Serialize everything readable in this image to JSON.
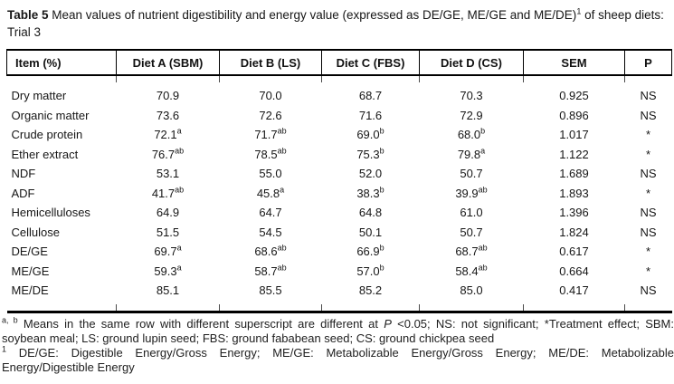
{
  "title": {
    "bold": "Table 5",
    "text": " Mean values of nutrient digestibility and energy value (expressed as DE/GE, ME/GE and ME/DE)",
    "sup": "1",
    "tail": " of sheep diets: Trial 3"
  },
  "table": {
    "columns": [
      "Item (%)",
      "Diet A (SBM)",
      "Diet B (LS)",
      "Diet C (FBS)",
      "Diet D (CS)",
      "SEM",
      "P"
    ],
    "rows": [
      {
        "item": "Dry matter",
        "cells": [
          {
            "v": "70.9"
          },
          {
            "v": "70.0"
          },
          {
            "v": "68.7"
          },
          {
            "v": "70.3"
          },
          {
            "v": "0.925"
          },
          {
            "v": "NS"
          }
        ]
      },
      {
        "item": "Organic matter",
        "cells": [
          {
            "v": "73.6"
          },
          {
            "v": "72.6"
          },
          {
            "v": "71.6"
          },
          {
            "v": "72.9"
          },
          {
            "v": "0.896"
          },
          {
            "v": "NS"
          }
        ]
      },
      {
        "item": "Crude protein",
        "cells": [
          {
            "v": "72.1",
            "sup": "a"
          },
          {
            "v": "71.7",
            "sup": "ab"
          },
          {
            "v": "69.0",
            "sup": "b"
          },
          {
            "v": "68.0",
            "sup": "b"
          },
          {
            "v": "1.017"
          },
          {
            "v": "*"
          }
        ]
      },
      {
        "item": "Ether extract",
        "cells": [
          {
            "v": "76.7",
            "sup": "ab"
          },
          {
            "v": "78.5",
            "sup": "ab"
          },
          {
            "v": "75.3",
            "sup": "b"
          },
          {
            "v": "79.8",
            "sup": "a"
          },
          {
            "v": "1.122"
          },
          {
            "v": "*"
          }
        ]
      },
      {
        "item": "NDF",
        "cells": [
          {
            "v": "53.1"
          },
          {
            "v": "55.0"
          },
          {
            "v": "52.0"
          },
          {
            "v": "50.7"
          },
          {
            "v": "1.689"
          },
          {
            "v": "NS"
          }
        ]
      },
      {
        "item": "ADF",
        "cells": [
          {
            "v": "41.7",
            "sup": "ab"
          },
          {
            "v": "45.8",
            "sup": "a"
          },
          {
            "v": "38.3",
            "sup": "b"
          },
          {
            "v": "39.9",
            "sup": "ab"
          },
          {
            "v": "1.893"
          },
          {
            "v": "*"
          }
        ]
      },
      {
        "item": "Hemicelluloses",
        "cells": [
          {
            "v": "64.9"
          },
          {
            "v": "64.7"
          },
          {
            "v": "64.8"
          },
          {
            "v": "61.0"
          },
          {
            "v": "1.396"
          },
          {
            "v": "NS"
          }
        ]
      },
      {
        "item": "Cellulose",
        "cells": [
          {
            "v": "51.5"
          },
          {
            "v": "54.5"
          },
          {
            "v": "50.1"
          },
          {
            "v": "50.7"
          },
          {
            "v": "1.824"
          },
          {
            "v": "NS"
          }
        ]
      },
      {
        "item": "DE/GE",
        "cells": [
          {
            "v": "69.7",
            "sup": "a"
          },
          {
            "v": "68.6",
            "sup": "ab"
          },
          {
            "v": "66.9",
            "sup": "b"
          },
          {
            "v": "68.7",
            "sup": "ab"
          },
          {
            "v": "0.617"
          },
          {
            "v": "*"
          }
        ]
      },
      {
        "item": "ME/GE",
        "cells": [
          {
            "v": "59.3",
            "sup": "a"
          },
          {
            "v": "58.7",
            "sup": "ab"
          },
          {
            "v": "57.0",
            "sup": "b"
          },
          {
            "v": "58.4",
            "sup": "ab"
          },
          {
            "v": "0.664"
          },
          {
            "v": "*"
          }
        ]
      },
      {
        "item": "ME/DE",
        "cells": [
          {
            "v": "85.1"
          },
          {
            "v": "85.5"
          },
          {
            "v": "85.2"
          },
          {
            "v": "85.0"
          },
          {
            "v": "0.417"
          },
          {
            "v": "NS"
          }
        ]
      }
    ]
  },
  "footnotes": {
    "significance": {
      "sup": "a, b",
      "pre": " Means in the same row with different superscript are different at ",
      "p_italic": "P",
      "post": " <0.05; NS: not significant; *Treatment effect; SBM: soybean meal; LS: ground lupin seed; FBS: ground fababean seed; CS: ground chickpea seed"
    },
    "abbreviations": {
      "sup": "1",
      "text": " DE/GE: Digestible Energy/Gross Energy; ME/GE: Metabolizable Energy/Gross Energy; ME/DE: Metabolizable Energy/Digestible Energy"
    }
  }
}
